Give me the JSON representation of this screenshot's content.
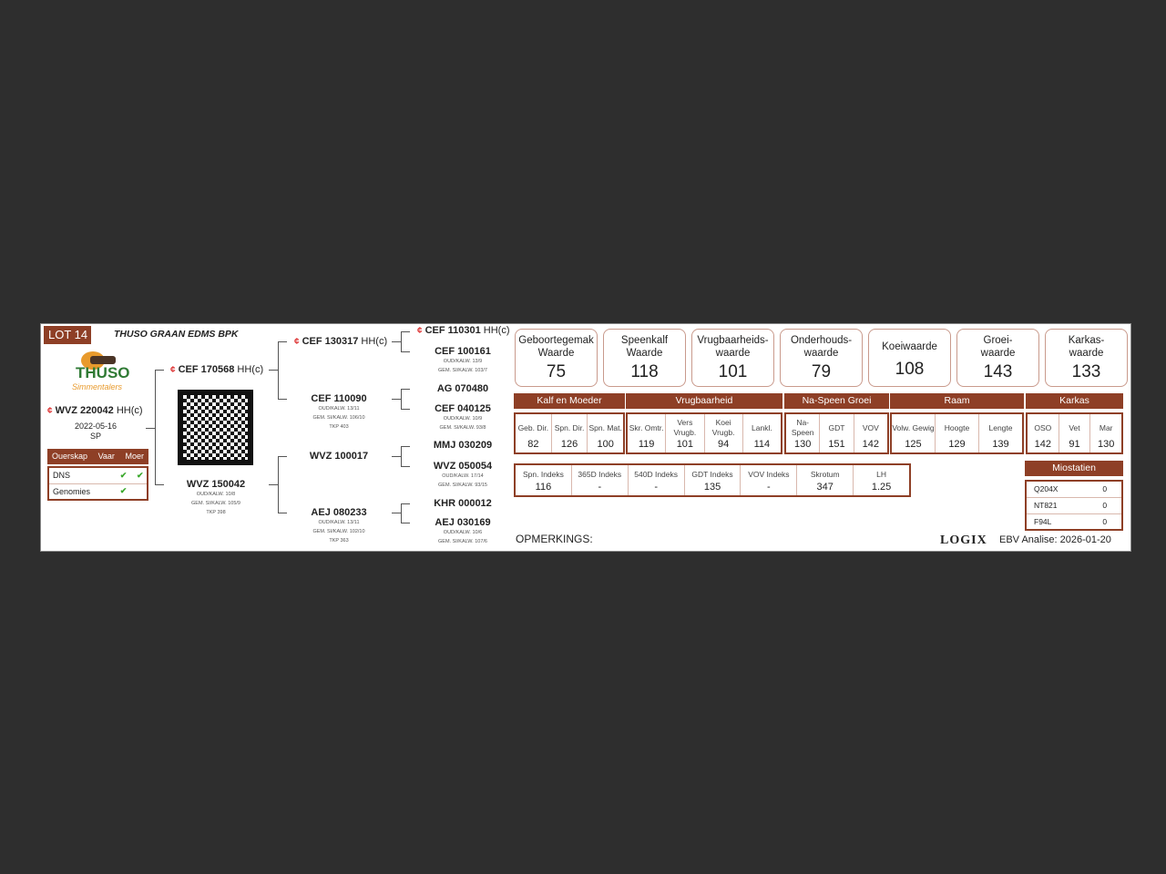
{
  "header": {
    "lot": "LOT 14",
    "company": "THUSO GRAAN EDMS BPK"
  },
  "logo": {
    "text": "THUSO",
    "subtext": "Simmentalers"
  },
  "animal": {
    "id": "WVZ 220042",
    "suffix": "HH(c)",
    "date": "2022-05-16",
    "code": "SP"
  },
  "parentage": {
    "headers": [
      "Ouerskap",
      "Vaar",
      "Moer"
    ],
    "rows": [
      {
        "label": "DNS",
        "sire": true,
        "dam": true
      },
      {
        "label": "Genomies",
        "sire": true,
        "dam": false
      }
    ],
    "check": "✔"
  },
  "pedigree": {
    "sire": {
      "id": "CEF 170568",
      "suffix": "HH(c)"
    },
    "dam": {
      "id": "WVZ 150042",
      "details": [
        "OUD/KALW. 10/8",
        "GEM. SI/KALW. 105/9",
        "TKP 398"
      ]
    },
    "ss": {
      "id": "CEF 130317",
      "suffix": "HH(c)"
    },
    "sd": {
      "id": "CEF 110090",
      "details": [
        "OUD/KALW. 13/11",
        "GEM. SI/KALW. 106/10",
        "TKP 403"
      ]
    },
    "ds": {
      "id": "WVZ 100017"
    },
    "dd": {
      "id": "AEJ 080233",
      "details": [
        "OUD/KALW. 13/11",
        "GEM. SI/KALW. 102/10",
        "TKP 363"
      ]
    },
    "sss": {
      "id": "CEF 110301",
      "suffix": "HH(c)"
    },
    "ssd": {
      "id": "CEF 100161",
      "details": [
        "OUD/KALW. 13/9",
        "GEM. SI/KALW. 103/7"
      ]
    },
    "sds": {
      "id": "AG 070480"
    },
    "sdd": {
      "id": "CEF 040125",
      "details": [
        "OUD/KALW. 10/9",
        "GEM. SI/KALW. 93/8"
      ]
    },
    "dss": {
      "id": "MMJ 030209"
    },
    "dsd": {
      "id": "WVZ 050054",
      "details": [
        "OUD/KALW. 17/14",
        "GEM. SI/KALW. 93/15"
      ]
    },
    "dds": {
      "id": "KHR 000012"
    },
    "ddd": {
      "id": "AEJ 030169",
      "details": [
        "OUD/KALW. 10/6",
        "GEM. SI/KALW. 107/6"
      ]
    }
  },
  "values": [
    {
      "l1": "Geboortegemak",
      "l2": "Waarde",
      "v": "75"
    },
    {
      "l1": "Speenkalf",
      "l2": "Waarde",
      "v": "118"
    },
    {
      "l1": "Vrugbaarheids-",
      "l2": "waarde",
      "v": "101"
    },
    {
      "l1": "Onderhouds-",
      "l2": "waarde",
      "v": "79"
    },
    {
      "l1": "Koeiwaarde",
      "l2": "",
      "v": "108"
    },
    {
      "l1": "Groei-",
      "l2": "waarde",
      "v": "143"
    },
    {
      "l1": "Karkas-",
      "l2": "waarde",
      "v": "133"
    }
  ],
  "groups": [
    {
      "name": "Kalf en Moeder",
      "traits": [
        {
          "l": "Geb. Dir.",
          "v": "82"
        },
        {
          "l": "Spn. Dir.",
          "v": "126"
        },
        {
          "l": "Spn. Mat.",
          "v": "100"
        }
      ]
    },
    {
      "name": "Vrugbaarheid",
      "traits": [
        {
          "l": "Skr. Omtr.",
          "v": "119"
        },
        {
          "l": "Vers Vrugb.",
          "v": "101"
        },
        {
          "l": "Koei Vrugb.",
          "v": "94"
        },
        {
          "l": "Lankl.",
          "v": "114"
        }
      ]
    },
    {
      "name": "Na-Speen Groei",
      "traits": [
        {
          "l": "Na- Speen",
          "v": "130"
        },
        {
          "l": "GDT",
          "v": "151"
        },
        {
          "l": "VOV",
          "v": "142"
        }
      ]
    },
    {
      "name": "Raam",
      "traits": [
        {
          "l": "Volw. Gewig",
          "v": "125"
        },
        {
          "l": "Hoogte",
          "v": "129"
        },
        {
          "l": "Lengte",
          "v": "139"
        }
      ]
    },
    {
      "name": "Karkas",
      "traits": [
        {
          "l": "OSO",
          "v": "142"
        },
        {
          "l": "Vet",
          "v": "91"
        },
        {
          "l": "Mar",
          "v": "130"
        }
      ]
    }
  ],
  "indexes": [
    {
      "l": "Spn. Indeks",
      "v": "116"
    },
    {
      "l": "365D Indeks",
      "v": "-"
    },
    {
      "l": "540D Indeks",
      "v": "-"
    },
    {
      "l": "GDT Indeks",
      "v": "135"
    },
    {
      "l": "VOV Indeks",
      "v": "-"
    },
    {
      "l": "Skrotum",
      "v": "347"
    },
    {
      "l": "LH",
      "v": "1.25"
    }
  ],
  "myostatin": {
    "title": "Miostatien",
    "rows": [
      {
        "k": "Q204X",
        "v": "0"
      },
      {
        "k": "NT821",
        "v": "0"
      },
      {
        "k": "F94L",
        "v": "0"
      }
    ]
  },
  "footer": {
    "remarks": "OPMERKINGS:",
    "brand": "LOGIX",
    "ebv": "EBV Analise: 2026-01-20"
  },
  "colors": {
    "accent": "#8e3f26",
    "check": "#3aa82c",
    "genomic_icon": "#dd3333"
  }
}
